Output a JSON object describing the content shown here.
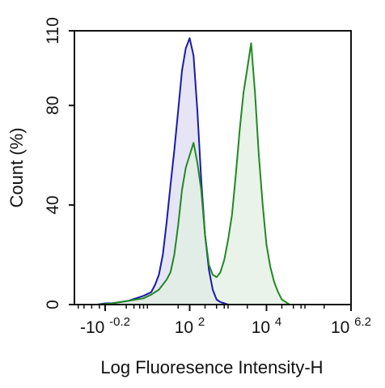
{
  "chart_data": {
    "type": "area",
    "title": "",
    "xlabel": "Log Fluoresence Intensity-H",
    "ylabel": "Count  (%)",
    "xscale": "biexponential",
    "ylim": [
      0,
      110
    ],
    "grid": false,
    "legend": "none",
    "xticks": [
      {
        "value": -0.2,
        "base": "-10",
        "exp": "-0.2"
      },
      {
        "value": 2,
        "base": "10",
        "exp": "2"
      },
      {
        "value": 4,
        "base": "10",
        "exp": "4"
      },
      {
        "value": 6.2,
        "base": "10",
        "exp": "6.2"
      }
    ],
    "yticks": [
      {
        "value": 0,
        "label": "0"
      },
      {
        "value": 40,
        "label": "40"
      },
      {
        "value": 80,
        "label": "80"
      },
      {
        "value": 110,
        "label": "110"
      }
    ],
    "series": [
      {
        "color": "#1a1aa8",
        "fill": "#dcdcf2",
        "x": [
          -0.8,
          -0.6,
          -0.4,
          -0.2,
          0.0,
          0.2,
          0.4,
          0.6,
          0.8,
          1.0,
          1.1,
          1.2,
          1.3,
          1.4,
          1.5,
          1.6,
          1.7,
          1.8,
          1.9,
          2.0,
          2.1,
          2.2,
          2.3,
          2.4,
          2.5,
          2.6,
          2.7,
          2.8,
          2.9,
          3.0
        ],
        "y": [
          0,
          0,
          0,
          0.5,
          0.6,
          1,
          1.5,
          2.5,
          3.5,
          5,
          8,
          12,
          20,
          33,
          48,
          62,
          78,
          94,
          103,
          107,
          100,
          78,
          50,
          28,
          14,
          6,
          2,
          1,
          0.5,
          0
        ]
      },
      {
        "color": "#228822",
        "fill": "#e2efe2",
        "x": [
          -0.8,
          -0.4,
          0.0,
          0.4,
          0.8,
          1.0,
          1.1,
          1.2,
          1.3,
          1.4,
          1.5,
          1.6,
          1.7,
          1.8,
          1.9,
          2.0,
          2.1,
          2.2,
          2.3,
          2.4,
          2.5,
          2.6,
          2.7,
          2.8,
          2.9,
          3.0,
          3.1,
          3.2,
          3.3,
          3.4,
          3.5,
          3.6,
          3.7,
          3.8,
          3.9,
          4.0,
          4.1,
          4.2,
          4.3,
          4.4,
          4.5,
          4.6
        ],
        "y": [
          0,
          0,
          0.5,
          1.5,
          2.5,
          4,
          5,
          6,
          8,
          10,
          13,
          20,
          32,
          46,
          55,
          60,
          65,
          57,
          46,
          28,
          16,
          12,
          11,
          13,
          18,
          26,
          36,
          52,
          70,
          85,
          95,
          105,
          85,
          60,
          40,
          24,
          15,
          9,
          5,
          2,
          1,
          0
        ]
      }
    ]
  }
}
